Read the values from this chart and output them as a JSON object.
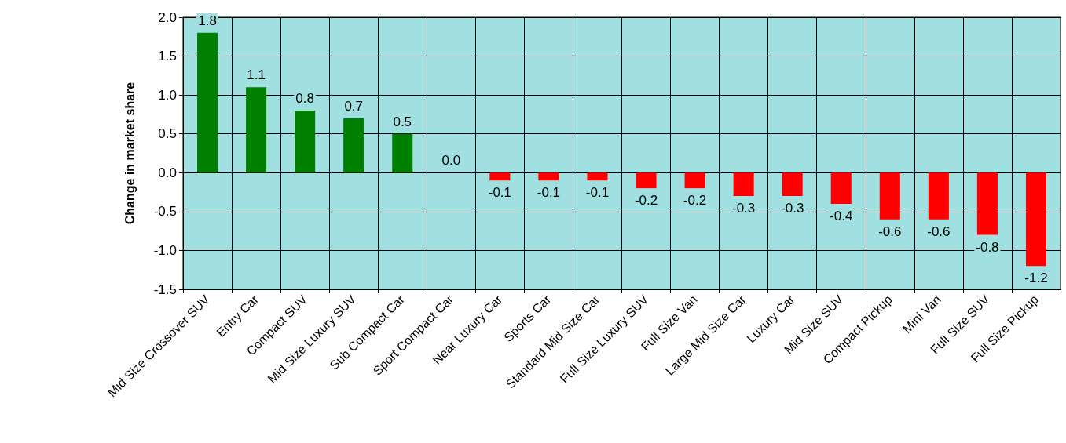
{
  "chart_data": {
    "type": "bar",
    "ylabel": "Change in market share",
    "categories": [
      "Mid Size Crossover SUV",
      "Entry Car",
      "Compact SUV",
      "Mid Size Luxury SUV",
      "Sub Compact Car",
      "Sport Compact Car",
      "Near Luxury Car",
      "Sports Car",
      "Standard Mid Size Car",
      "Full Size Luxury SUV",
      "Full Size Van",
      "Large Mid Size Car",
      "Luxury Car",
      "Mid Size SUV",
      "Compact Pickup",
      "Mini Van",
      "Full Size SUV",
      "Full Size Pickup"
    ],
    "values": [
      1.8,
      1.1,
      0.8,
      0.7,
      0.5,
      0.0,
      -0.1,
      -0.1,
      -0.1,
      -0.2,
      -0.2,
      -0.3,
      -0.3,
      -0.4,
      -0.6,
      -0.6,
      -0.8,
      -1.2
    ],
    "colors": [
      "#008000",
      "#008000",
      "#008000",
      "#008000",
      "#008000",
      "#008000",
      "#ff0000",
      "#ff0000",
      "#ff0000",
      "#ff0000",
      "#ff0000",
      "#ff0000",
      "#ff0000",
      "#ff0000",
      "#ff0000",
      "#ff0000",
      "#ff0000",
      "#ff0000"
    ],
    "value_labels": [
      "1.8",
      "1.1",
      "0.8",
      "0.7",
      "0.5",
      "0.0",
      "-0.1",
      "-0.1",
      "-0.1",
      "-0.2",
      "-0.2",
      "-0.3",
      "-0.3",
      "-0.4",
      "-0.6",
      "-0.6",
      "-0.8",
      "-1.2"
    ],
    "ylim": [
      -1.5,
      2.0
    ],
    "yticks": [
      {
        "value": -1.5,
        "label": "-1.5"
      },
      {
        "value": -1.0,
        "label": "-1.0"
      },
      {
        "value": -0.5,
        "label": "-0.5"
      },
      {
        "value": 0.0,
        "label": "0.0"
      },
      {
        "value": 0.5,
        "label": "0.5"
      },
      {
        "value": 1.0,
        "label": "1.0"
      },
      {
        "value": 1.5,
        "label": "1.5"
      },
      {
        "value": 2.0,
        "label": "2.0"
      }
    ],
    "grid": true
  }
}
